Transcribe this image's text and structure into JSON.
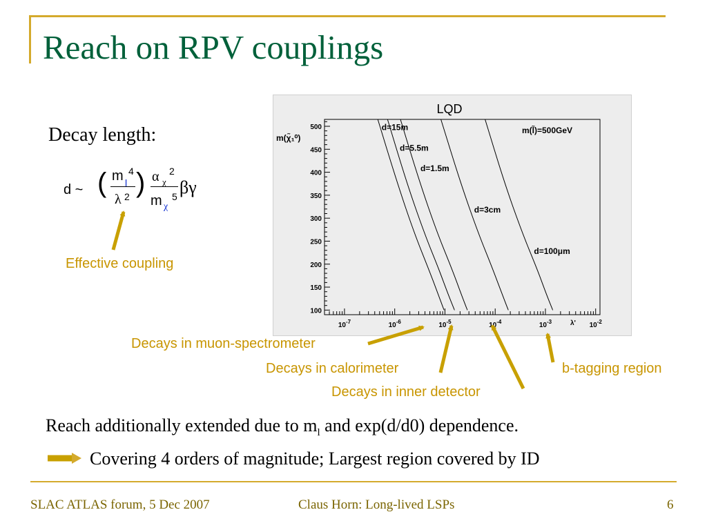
{
  "slide": {
    "title": "Reach on RPV couplings",
    "decay_label": "Decay length:",
    "formula": {
      "lhs": "d ~",
      "open_paren": "(",
      "close_paren": ")",
      "num1_m": "m",
      "num1_sub": "l",
      "num1_sup": "4",
      "den1_lambda": "λ",
      "den1_sup": "2",
      "num2_alpha": "α",
      "num2_sub": "χ",
      "num2_sup": "2",
      "den2_m": "m",
      "den2_sub": "χ",
      "den2_sup": "5",
      "tail": "βγ"
    },
    "annotations": {
      "effective_coupling": "Effective coupling",
      "muon_spectrometer": "Decays in muon-spectrometer",
      "calorimeter": "Decays in calorimeter",
      "inner_detector": "Decays in inner detector",
      "b_tagging": "b-tagging region"
    },
    "body": {
      "line1_pre": "Reach additionally extended due to m",
      "line1_sub": "l",
      "line1_post": " and exp(d/d0) dependence.",
      "line2": "Covering 4 orders of magnitude; Largest region covered by ID"
    },
    "footer": {
      "left": "SLAC ATLAS forum, 5 Dec 2007",
      "center": "Claus Horn: Long-lived LSPs",
      "page": "6"
    },
    "colors": {
      "title": "#00603a",
      "accent": "#d4aa2c",
      "annotation": "#c89500",
      "footer_text": "#7a6400"
    }
  },
  "chart_data": {
    "type": "line",
    "title": "LQD",
    "ylabel": "m(χ̃₁⁰)",
    "xlabel": "λ'",
    "x_scale": "log",
    "xlim": [
      4e-08,
      0.0122
    ],
    "ylim": [
      90,
      515
    ],
    "x_tick_labels": [
      "10-7",
      "10-6",
      "10-5",
      "10-4",
      "10-3",
      "10-2"
    ],
    "y_ticks": [
      100,
      150,
      200,
      250,
      300,
      350,
      400,
      450,
      500
    ],
    "grid": false,
    "annotation": "m(l̃)=500GeV",
    "series": [
      {
        "name": "d=15m",
        "points": [
          [
            4.6e-07,
            515
          ],
          [
            1.1e-06,
            380
          ],
          [
            2.4e-06,
            270
          ],
          [
            4.7e-06,
            190
          ],
          [
            7.3e-06,
            135
          ],
          [
            9.6e-06,
            100
          ]
        ]
      },
      {
        "name": "d=5.5m",
        "points": [
          [
            7.2e-07,
            515
          ],
          [
            1.7e-06,
            380
          ],
          [
            3.8e-06,
            270
          ],
          [
            7.5e-06,
            190
          ],
          [
            1.15e-05,
            135
          ],
          [
            1.55e-05,
            100
          ]
        ]
      },
      {
        "name": "d=1.5m",
        "points": [
          [
            1.3e-06,
            515
          ],
          [
            3.1e-06,
            380
          ],
          [
            6.9e-06,
            270
          ],
          [
            1.37e-05,
            190
          ],
          [
            2.1e-05,
            135
          ],
          [
            2.8e-05,
            100
          ]
        ]
      },
      {
        "name": "d=3cm",
        "points": [
          [
            8.3e-06,
            515
          ],
          [
            2e-05,
            380
          ],
          [
            4.5e-05,
            270
          ],
          [
            8.9e-05,
            190
          ],
          [
            0.000137,
            135
          ],
          [
            0.000183,
            100
          ]
        ]
      },
      {
        "name": "d=100μm",
        "points": [
          [
            6.3e-05,
            515
          ],
          [
            0.00015,
            380
          ],
          [
            0.00034,
            270
          ],
          [
            0.00068,
            190
          ],
          [
            0.00104,
            135
          ],
          [
            0.0014,
            100
          ]
        ]
      }
    ]
  }
}
